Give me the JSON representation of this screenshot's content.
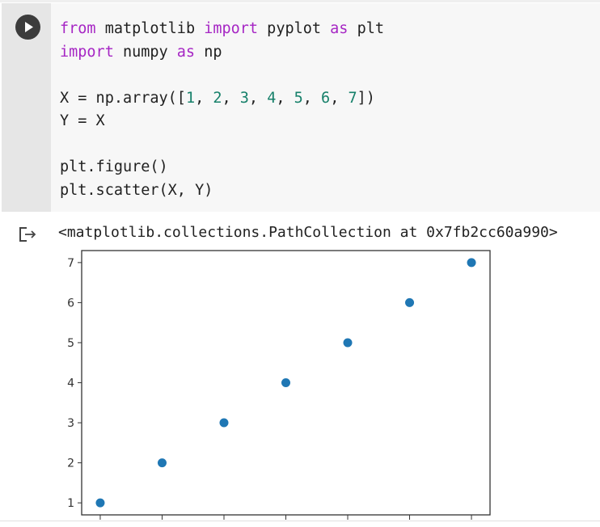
{
  "cell": {
    "run_button_icon": "play-icon",
    "code_lines": [
      [
        {
          "t": "from",
          "c": "kw"
        },
        {
          "t": " matplotlib "
        },
        {
          "t": "import",
          "c": "kw"
        },
        {
          "t": " pyplot "
        },
        {
          "t": "as",
          "c": "kw"
        },
        {
          "t": " plt"
        }
      ],
      [
        {
          "t": "import",
          "c": "kw"
        },
        {
          "t": " numpy "
        },
        {
          "t": "as",
          "c": "kw"
        },
        {
          "t": " np"
        }
      ],
      [],
      [
        {
          "t": "X = np.array(["
        },
        {
          "t": "1",
          "c": "num"
        },
        {
          "t": ", "
        },
        {
          "t": "2",
          "c": "num"
        },
        {
          "t": ", "
        },
        {
          "t": "3",
          "c": "num"
        },
        {
          "t": ", "
        },
        {
          "t": "4",
          "c": "num"
        },
        {
          "t": ", "
        },
        {
          "t": "5",
          "c": "num"
        },
        {
          "t": ", "
        },
        {
          "t": "6",
          "c": "num"
        },
        {
          "t": ", "
        },
        {
          "t": "7",
          "c": "num"
        },
        {
          "t": "])"
        }
      ],
      [
        {
          "t": "Y = X"
        }
      ],
      [],
      [
        {
          "t": "plt.figure()"
        }
      ],
      [
        {
          "t": "plt.scatter(X, Y)"
        }
      ]
    ]
  },
  "output": {
    "icon": "output-arrow-icon",
    "text": "<matplotlib.collections.PathCollection at 0x7fb2cc60a990>"
  },
  "colors": {
    "keyword": "#a626c4",
    "number": "#16806a",
    "marker": "#1f77b4"
  },
  "chart_data": {
    "type": "scatter",
    "x": [
      1,
      2,
      3,
      4,
      5,
      6,
      7
    ],
    "y": [
      1,
      2,
      3,
      4,
      5,
      6,
      7
    ],
    "xlim": [
      0.7,
      7.3
    ],
    "ylim": [
      0.7,
      7.3
    ],
    "yticks": [
      "1",
      "2",
      "3",
      "4",
      "5",
      "6",
      "7"
    ],
    "xticks": [
      1,
      2,
      3,
      4,
      5,
      6,
      7
    ],
    "grid": false,
    "marker_color": "#1f77b4"
  }
}
